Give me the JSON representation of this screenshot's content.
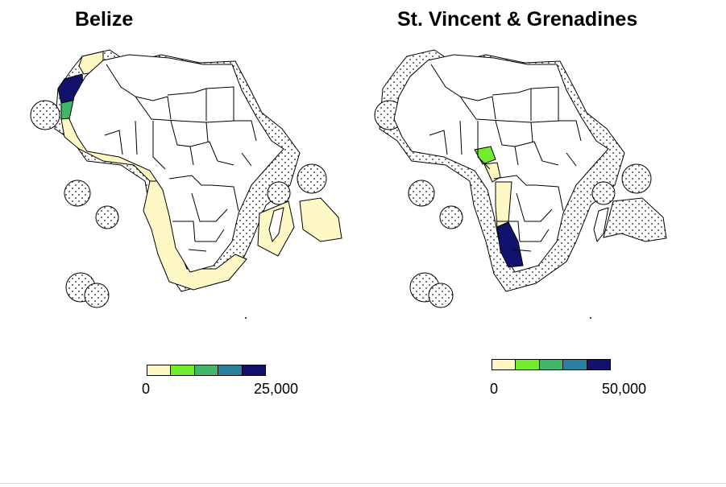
{
  "panels": [
    {
      "title": "Belize",
      "highlight_countries": [
        "Western Sahara",
        "Senegal"
      ],
      "legend": {
        "min_label": "0",
        "max_label": "25,000"
      }
    },
    {
      "title": "St. Vincent & Grenadines",
      "highlight_countries": [
        "Nigeria",
        "Namibia"
      ],
      "legend": {
        "min_label": "0",
        "max_label": "50,000"
      }
    }
  ],
  "palette": [
    "#fdf8c4",
    "#72ec2c",
    "#3fb86a",
    "#2a7ea0",
    "#12126e"
  ],
  "eez_stipple_color": "#1a1a1a",
  "border_color": "#000000"
}
